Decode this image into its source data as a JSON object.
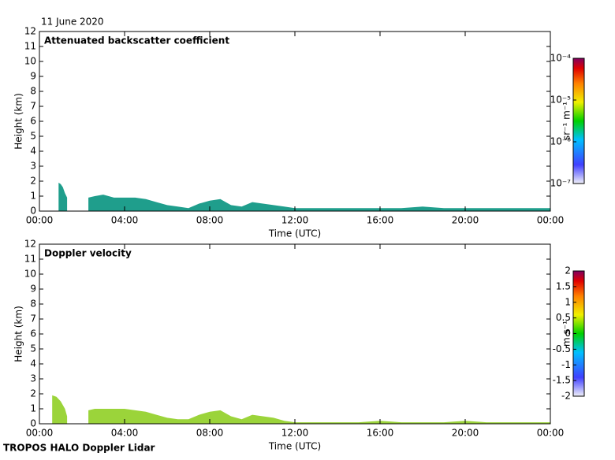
{
  "date": "11 June 2020",
  "footer": "TROPOS HALO Doppler Lidar",
  "chart_data": [
    {
      "type": "area",
      "title": "Attenuated backscatter coefficient",
      "xlabel": "Time (UTC)",
      "ylabel": "Height (km)",
      "color": "#1f9e8c",
      "xlim": [
        0,
        24
      ],
      "xticks": [
        {
          "value": 0,
          "label": "00:00"
        },
        {
          "value": 4,
          "label": "04:00"
        },
        {
          "value": 8,
          "label": "08:00"
        },
        {
          "value": 12,
          "label": "12:00"
        },
        {
          "value": 16,
          "label": "16:00"
        },
        {
          "value": 20,
          "label": "20:00"
        },
        {
          "value": 24,
          "label": "00:00"
        }
      ],
      "ylim": [
        0,
        12
      ],
      "yticks": [
        0,
        1,
        2,
        3,
        4,
        5,
        6,
        7,
        8,
        9,
        10,
        11,
        12
      ],
      "x": [
        0.9,
        1.0,
        1.1,
        1.2,
        1.3,
        1.8,
        2.3,
        2.6,
        3,
        3.5,
        4,
        4.5,
        5,
        5.5,
        6,
        6.5,
        7,
        7.5,
        8,
        8.5,
        9,
        9.5,
        10,
        10.5,
        11,
        11.5,
        12,
        13,
        14,
        15,
        16,
        17,
        18,
        19,
        20,
        21,
        22,
        23,
        24
      ],
      "values": [
        1.9,
        1.8,
        1.6,
        1.2,
        0.9,
        null,
        0.9,
        1.0,
        1.1,
        0.9,
        0.9,
        0.9,
        0.8,
        0.6,
        0.4,
        0.3,
        0.2,
        0.5,
        0.7,
        0.8,
        0.4,
        0.3,
        0.6,
        0.5,
        0.4,
        0.3,
        0.2,
        0.2,
        0.2,
        0.2,
        0.2,
        0.2,
        0.3,
        0.2,
        0.2,
        0.2,
        0.2,
        0.2,
        0.2
      ],
      "colorbar": {
        "label": "sr⁻¹ m⁻¹",
        "log_scale": true,
        "lim": [
          1e-07,
          0.0001
        ],
        "ticks": [
          {
            "value": 1e-07,
            "label": "10⁻⁷"
          },
          {
            "value": 1e-06,
            "label": "10⁻⁶"
          },
          {
            "value": 1e-05,
            "label": "10⁻⁵"
          },
          {
            "value": 0.0001,
            "label": "10⁻⁴"
          }
        ]
      }
    },
    {
      "type": "area",
      "title": "Doppler velocity",
      "xlabel": "Time (UTC)",
      "ylabel": "Height (km)",
      "color": "#9bd43a",
      "xlim": [
        0,
        24
      ],
      "xticks": [
        {
          "value": 0,
          "label": "00:00"
        },
        {
          "value": 4,
          "label": "04:00"
        },
        {
          "value": 8,
          "label": "08:00"
        },
        {
          "value": 12,
          "label": "12:00"
        },
        {
          "value": 16,
          "label": "16:00"
        },
        {
          "value": 20,
          "label": "20:00"
        },
        {
          "value": 24,
          "label": "00:00"
        }
      ],
      "ylim": [
        0,
        12
      ],
      "yticks": [
        0,
        1,
        2,
        3,
        4,
        5,
        6,
        7,
        8,
        9,
        10,
        11,
        12
      ],
      "x": [
        0.6,
        0.8,
        1.0,
        1.2,
        1.3,
        1.8,
        2.3,
        2.6,
        3,
        3.5,
        4,
        4.5,
        5,
        5.5,
        6,
        6.5,
        7,
        7.5,
        8,
        8.5,
        9,
        9.5,
        10,
        10.5,
        11,
        11.5,
        12,
        13,
        14,
        15,
        16,
        17,
        18,
        19,
        20,
        21,
        22,
        23,
        24
      ],
      "values": [
        1.9,
        1.8,
        1.5,
        1.0,
        0.5,
        null,
        0.9,
        1.0,
        1.0,
        1.0,
        1.0,
        0.9,
        0.8,
        0.6,
        0.4,
        0.3,
        0.3,
        0.6,
        0.8,
        0.9,
        0.5,
        0.3,
        0.6,
        0.5,
        0.4,
        0.2,
        0.1,
        0.1,
        0.1,
        0.1,
        0.2,
        0.1,
        0.1,
        0.1,
        0.2,
        0.1,
        0.1,
        0.1,
        0.1
      ],
      "colorbar": {
        "label": "m s⁻¹",
        "log_scale": false,
        "lim": [
          -2,
          2
        ],
        "ticks": [
          -2,
          -1.5,
          -1,
          -0.5,
          0,
          0.5,
          1,
          1.5,
          2
        ]
      }
    }
  ]
}
